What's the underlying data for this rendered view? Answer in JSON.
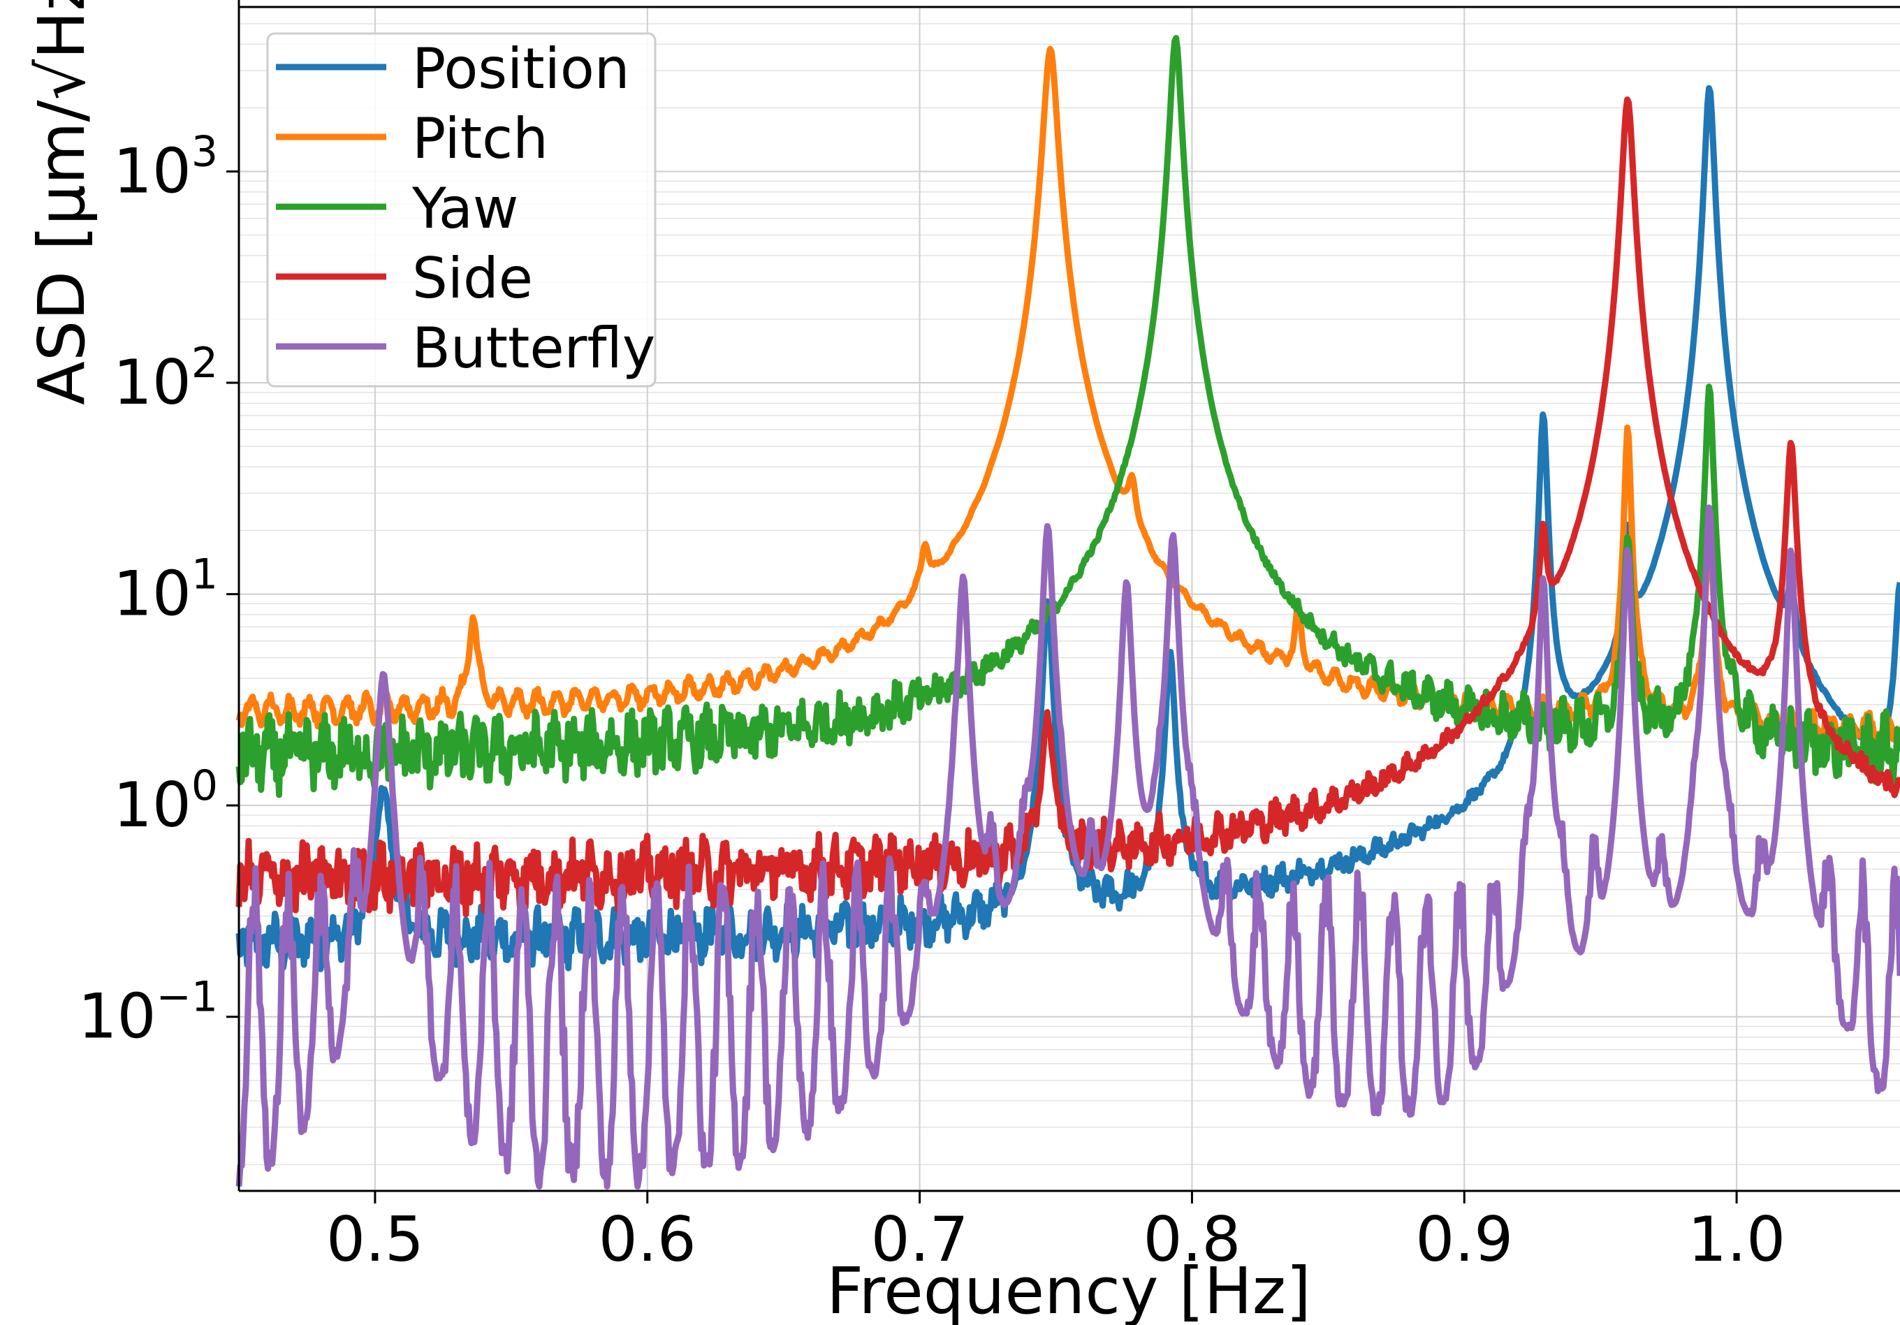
{
  "chart_data": {
    "type": "line",
    "title": "",
    "xlabel": "Frequency [Hz]",
    "ylabel": "ASD [μm/√Hz]",
    "xscale": "linear",
    "yscale": "log",
    "xlim": [
      0.45,
      1.06
    ],
    "ylim": [
      0.015,
      6000
    ],
    "grid": true,
    "legend_position": "upper-left",
    "x_ticks": [
      {
        "value": 0.5,
        "label": "0.5"
      },
      {
        "value": 0.6,
        "label": "0.6"
      },
      {
        "value": 0.7,
        "label": "0.7"
      },
      {
        "value": 0.8,
        "label": "0.8"
      },
      {
        "value": 0.9,
        "label": "0.9"
      },
      {
        "value": 1.0,
        "label": "1.0"
      }
    ],
    "y_ticks": [
      {
        "value": 0.1,
        "base": "10",
        "exp": "−1"
      },
      {
        "value": 1,
        "base": "10",
        "exp": "0"
      },
      {
        "value": 10,
        "base": "10",
        "exp": "1"
      },
      {
        "value": 100,
        "base": "10",
        "exp": "2"
      },
      {
        "value": 1000,
        "base": "10",
        "exp": "3"
      }
    ],
    "series": [
      {
        "name": "Position",
        "color": "#1f77b4",
        "baseline": 0.2,
        "noise": 0.12,
        "peaks": [
          {
            "f": 0.503,
            "amp": 1.0,
            "width": 0.0025
          },
          {
            "f": 0.747,
            "amp": 9.0,
            "width": 0.0015
          },
          {
            "f": 0.792,
            "amp": 5.0,
            "width": 0.0015
          },
          {
            "f": 0.929,
            "amp": 70,
            "width": 0.0012
          },
          {
            "f": 0.96,
            "amp": 15,
            "width": 0.0012
          },
          {
            "f": 0.99,
            "amp": 2500,
            "width": 0.0015
          },
          {
            "f": 1.02,
            "amp": 5.0,
            "width": 0.0015
          },
          {
            "f": 1.06,
            "amp": 10,
            "width": 0.0015
          }
        ]
      },
      {
        "name": "Pitch",
        "color": "#ff7f0e",
        "baseline": 2.6,
        "baseline_end": 2.1,
        "noise": 0.03,
        "peaks": [
          {
            "f": 0.536,
            "amp": 5.0,
            "width": 0.0015
          },
          {
            "f": 0.702,
            "amp": 6.5,
            "width": 0.0015
          },
          {
            "f": 0.748,
            "amp": 3800,
            "width": 0.0022
          },
          {
            "f": 0.778,
            "amp": 14,
            "width": 0.0015
          },
          {
            "f": 0.839,
            "amp": 4.0,
            "width": 0.0012
          },
          {
            "f": 0.96,
            "amp": 60,
            "width": 0.001
          },
          {
            "f": 0.99,
            "amp": 18,
            "width": 0.0012
          }
        ]
      },
      {
        "name": "Yaw",
        "color": "#2ca02c",
        "baseline": 1.6,
        "noise": 0.15,
        "peaks": [
          {
            "f": 0.794,
            "amp": 4300,
            "width": 0.0018
          },
          {
            "f": 0.96,
            "amp": 17,
            "width": 0.0012
          },
          {
            "f": 0.99,
            "amp": 95,
            "width": 0.0012
          }
        ]
      },
      {
        "name": "Side",
        "color": "#d62728",
        "baseline": 0.42,
        "noise": 0.14,
        "peaks": [
          {
            "f": 0.747,
            "amp": 2.0,
            "width": 0.002
          },
          {
            "f": 0.929,
            "amp": 14,
            "width": 0.0012
          },
          {
            "f": 0.96,
            "amp": 2200,
            "width": 0.0018
          },
          {
            "f": 1.02,
            "amp": 50,
            "width": 0.0015
          }
        ]
      },
      {
        "name": "Butterfly",
        "color": "#9467bd",
        "baseline": 0.1,
        "oscillating": true,
        "peaks": [
          {
            "f": 0.503,
            "amp": 4.0,
            "width": 0.002
          },
          {
            "f": 0.716,
            "amp": 12,
            "width": 0.0015
          },
          {
            "f": 0.747,
            "amp": 21,
            "width": 0.0015
          },
          {
            "f": 0.776,
            "amp": 11,
            "width": 0.0015
          },
          {
            "f": 0.793,
            "amp": 19,
            "width": 0.0015
          },
          {
            "f": 0.929,
            "amp": 12,
            "width": 0.0012
          },
          {
            "f": 0.96,
            "amp": 16,
            "width": 0.0012
          },
          {
            "f": 0.99,
            "amp": 26,
            "width": 0.0012
          },
          {
            "f": 1.02,
            "amp": 16,
            "width": 0.0012
          }
        ]
      }
    ]
  }
}
